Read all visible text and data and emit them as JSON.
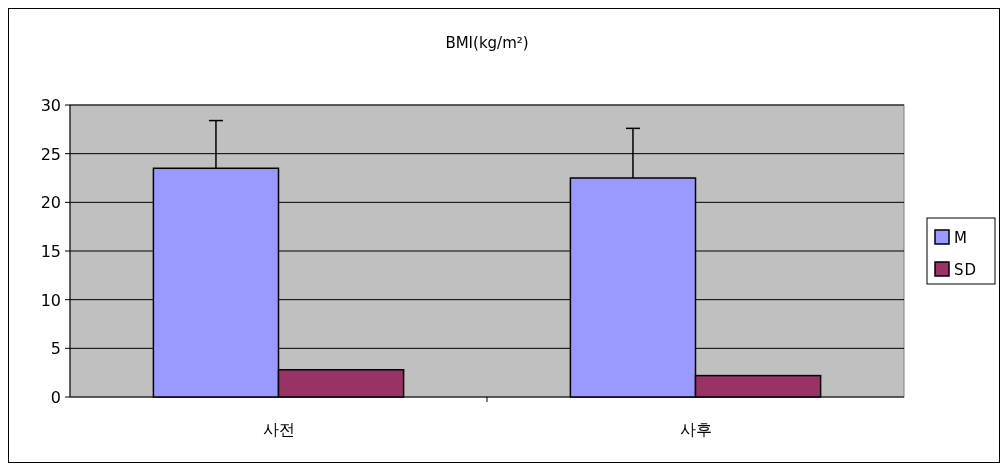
{
  "chart_data": {
    "type": "bar",
    "title": "BMI(kg/m²)",
    "categories": [
      "사전",
      "사후"
    ],
    "series": [
      {
        "name": "M",
        "color": "#9999ff",
        "values": [
          23.5,
          22.5
        ],
        "errors": [
          [
            23.5,
            28.4
          ],
          [
            22.5,
            27.6
          ]
        ]
      },
      {
        "name": "SD",
        "color": "#993366",
        "values": [
          2.8,
          2.2
        ]
      }
    ],
    "ylim": [
      0,
      30
    ],
    "yticks": [
      0,
      5,
      10,
      15,
      20,
      25,
      30
    ],
    "grid": "y",
    "legend": "right"
  }
}
